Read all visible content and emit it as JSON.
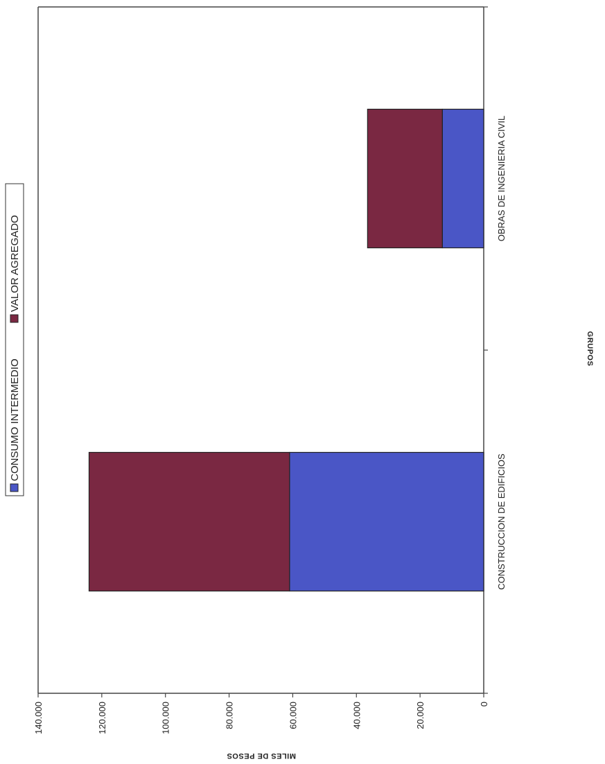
{
  "colors": {
    "consumo": "#4a56c6",
    "valor": "#7a2842"
  },
  "chart_data": {
    "type": "bar",
    "stacked": true,
    "categories": [
      "CONSTRUCCION DE EDIFICIOS",
      "OBRAS DE INGENIERIA CIVIL"
    ],
    "series": [
      {
        "name": "CONSUMO INTERMEDIO",
        "values": [
          61000,
          13000
        ]
      },
      {
        "name": "VALOR AGREGADO",
        "values": [
          63000,
          23500
        ]
      }
    ],
    "ylim": [
      0,
      140000
    ],
    "yticks": [
      "0",
      "20.000",
      "40.000",
      "60.000",
      "80.000",
      "100.000",
      "120.000",
      "140.000"
    ],
    "ylabel": "MILES DE PESOS",
    "xlabel": "GRUPOS",
    "legend": "top",
    "grid": false
  }
}
